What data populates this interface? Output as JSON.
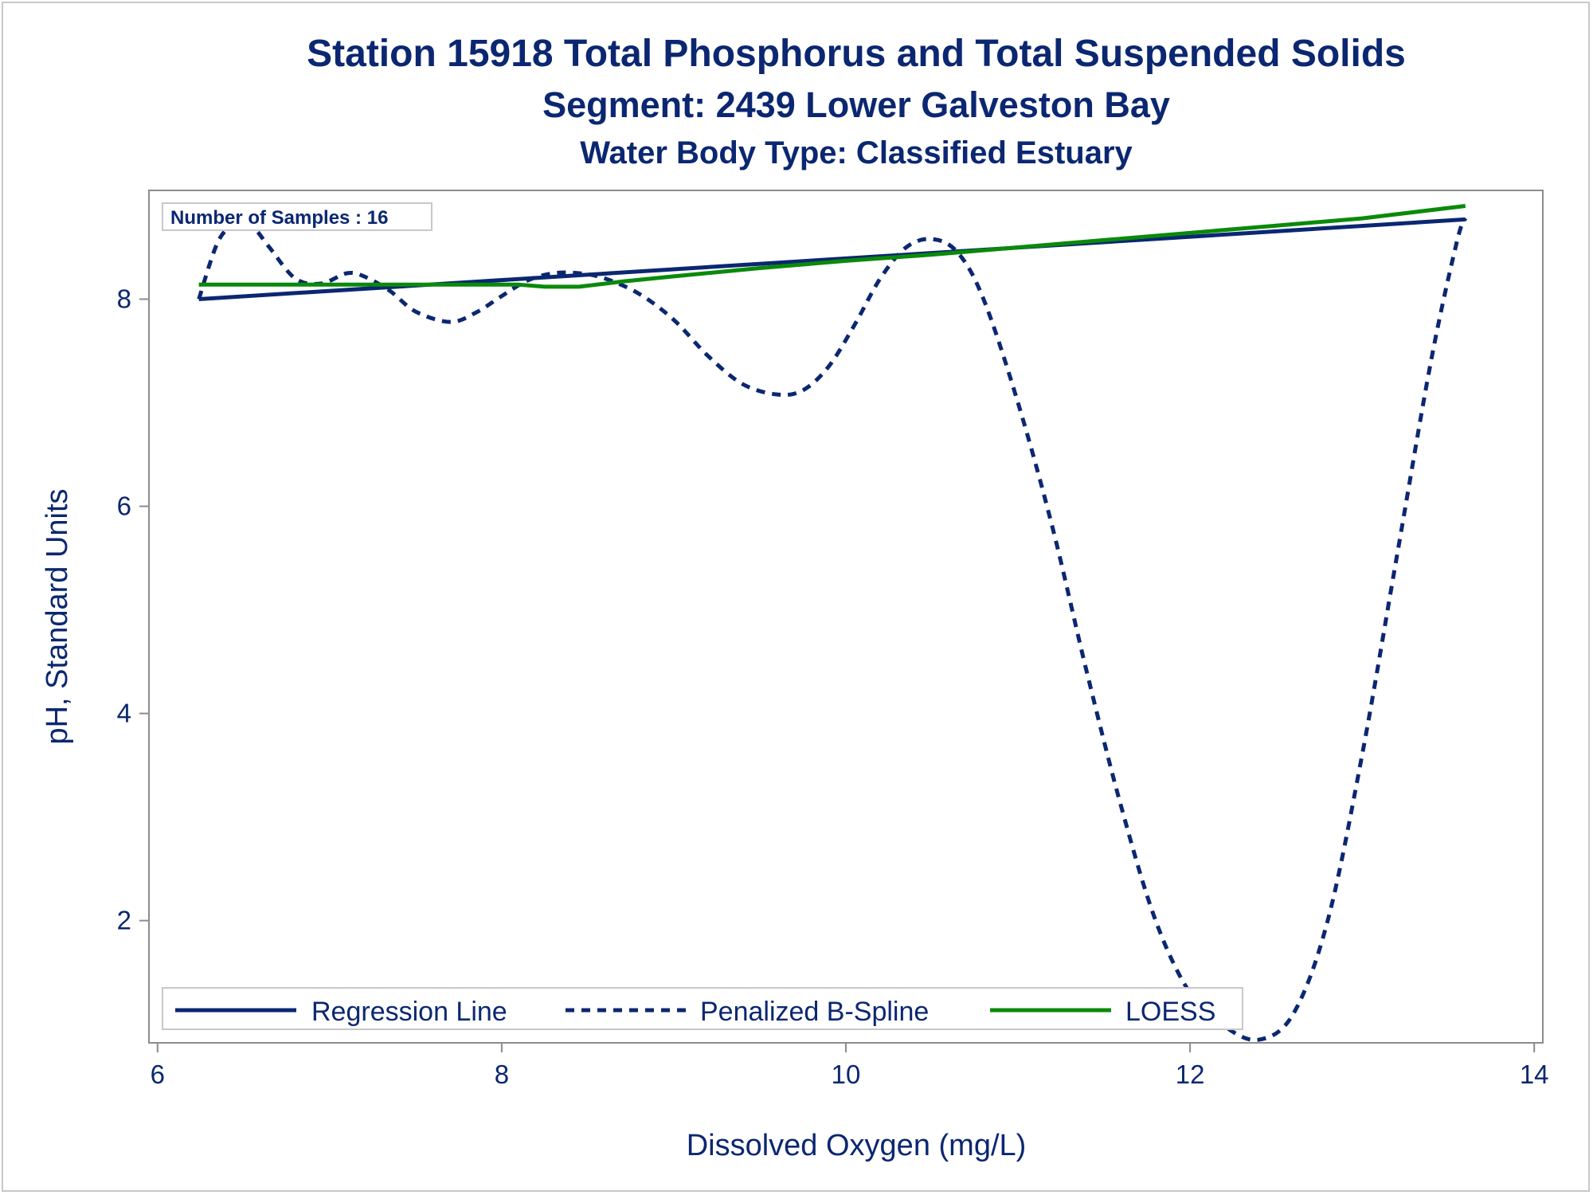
{
  "titles": {
    "line1": "Station 15918  Total Phosphorus and Total Suspended Solids",
    "line2": "Segment: 2439  Lower Galveston Bay",
    "line3": "Water Body Type: Classified Estuary"
  },
  "inset": {
    "label": "Number of Samples : 16"
  },
  "colors": {
    "regression": "#0b2771",
    "spline": "#0b2771",
    "loess": "#0a8a0a",
    "text": "#0b2771",
    "axis": "#8c8c8c"
  },
  "chart_data": {
    "type": "line",
    "xlabel": "Dissolved Oxygen (mg/L)",
    "ylabel": "pH, Standard Units",
    "xlim": [
      5.95,
      14.05
    ],
    "ylim": [
      0.82,
      9.05
    ],
    "xticks": [
      6,
      8,
      10,
      12,
      14
    ],
    "yticks": [
      2,
      4,
      6,
      8
    ],
    "grid": false,
    "legend_position": "bottom-inside",
    "series": [
      {
        "name": "Regression Line",
        "style": "solid",
        "x": [
          6.24,
          13.6
        ],
        "y": [
          8.0,
          8.77
        ]
      },
      {
        "name": "Penalized B-Spline",
        "style": "dashed",
        "x": [
          6.24,
          6.35,
          6.45,
          6.55,
          6.65,
          6.8,
          6.95,
          7.1,
          7.2,
          7.35,
          7.5,
          7.7,
          7.85,
          8.0,
          8.15,
          8.3,
          8.45,
          8.6,
          8.8,
          9.0,
          9.2,
          9.4,
          9.6,
          9.75,
          9.9,
          10.05,
          10.2,
          10.35,
          10.5,
          10.65,
          10.8,
          11.0,
          11.2,
          11.4,
          11.6,
          11.8,
          12.0,
          12.2,
          12.4,
          12.6,
          12.8,
          13.0,
          13.2,
          13.4,
          13.55,
          13.6
        ],
        "y": [
          8.0,
          8.55,
          8.72,
          8.7,
          8.5,
          8.2,
          8.15,
          8.25,
          8.22,
          8.08,
          7.88,
          7.78,
          7.87,
          8.03,
          8.18,
          8.25,
          8.25,
          8.2,
          8.05,
          7.8,
          7.45,
          7.18,
          7.08,
          7.12,
          7.35,
          7.75,
          8.2,
          8.5,
          8.58,
          8.45,
          8.0,
          7.0,
          5.8,
          4.4,
          3.1,
          2.0,
          1.3,
          0.98,
          0.85,
          1.1,
          2.0,
          3.6,
          5.5,
          7.4,
          8.55,
          8.78
        ]
      },
      {
        "name": "LOESS",
        "style": "solid",
        "x": [
          6.24,
          6.6,
          7.0,
          7.4,
          7.8,
          8.1,
          8.25,
          8.45,
          8.7,
          9.0,
          9.5,
          10.0,
          10.5,
          11.0,
          11.5,
          12.0,
          12.5,
          13.0,
          13.6
        ],
        "y": [
          8.14,
          8.14,
          8.14,
          8.14,
          8.14,
          8.14,
          8.12,
          8.12,
          8.17,
          8.22,
          8.3,
          8.37,
          8.43,
          8.5,
          8.57,
          8.64,
          8.71,
          8.78,
          8.9
        ]
      }
    ]
  }
}
